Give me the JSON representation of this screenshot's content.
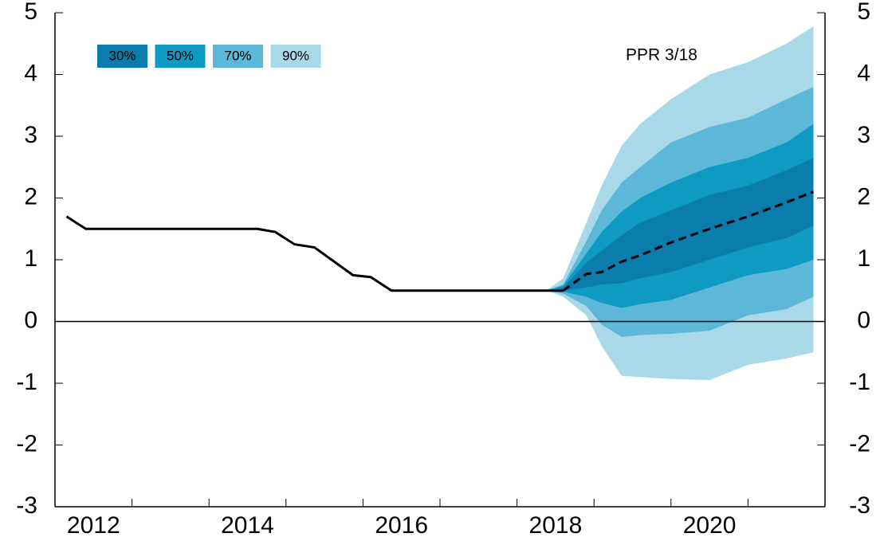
{
  "chart_data": {
    "type": "fan",
    "annotation": "PPR 3/18",
    "xlim": [
      2012,
      2022
    ],
    "xticks": [
      {
        "value": 2012.5,
        "label": "2012"
      },
      {
        "value": 2014.5,
        "label": "2014"
      },
      {
        "value": 2016.5,
        "label": "2016"
      },
      {
        "value": 2018.5,
        "label": "2018"
      },
      {
        "value": 2020.5,
        "label": "2020"
      }
    ],
    "xtick_marks": [
      2013,
      2014,
      2015,
      2016,
      2017,
      2018,
      2019,
      2020,
      2021
    ],
    "ylim": [
      -3,
      5
    ],
    "yticks": [
      -3,
      -2,
      -1,
      0,
      1,
      2,
      3,
      4,
      5
    ],
    "right_axis": true,
    "zero_line": 0,
    "bands": [
      {
        "name": "90%",
        "color": "#a9d9e9",
        "x": [
          2018.38,
          2018.6,
          2018.9,
          2019.1,
          2019.36,
          2019.6,
          2020.0,
          2020.5,
          2021.0,
          2021.5,
          2021.85
        ],
        "upper": [
          0.5,
          0.7,
          1.6,
          2.2,
          2.85,
          3.2,
          3.6,
          4.0,
          4.2,
          4.5,
          4.78
        ],
        "lower": [
          0.5,
          0.4,
          0.1,
          -0.4,
          -0.88,
          -0.9,
          -0.93,
          -0.95,
          -0.7,
          -0.6,
          -0.5
        ]
      },
      {
        "name": "70%",
        "color": "#5cb8d6",
        "x": [
          2018.38,
          2018.6,
          2018.9,
          2019.1,
          2019.36,
          2019.6,
          2020.0,
          2020.5,
          2021.0,
          2021.5,
          2021.85
        ],
        "upper": [
          0.5,
          0.6,
          1.3,
          1.8,
          2.25,
          2.5,
          2.9,
          3.15,
          3.3,
          3.6,
          3.8
        ],
        "lower": [
          0.5,
          0.45,
          0.25,
          -0.05,
          -0.25,
          -0.22,
          -0.2,
          -0.15,
          0.1,
          0.2,
          0.4
        ]
      },
      {
        "name": "50%",
        "color": "#0e9ac3",
        "x": [
          2018.38,
          2018.6,
          2018.9,
          2019.1,
          2019.36,
          2019.6,
          2020.0,
          2020.5,
          2021.0,
          2021.5,
          2021.85
        ],
        "upper": [
          0.5,
          0.58,
          1.1,
          1.45,
          1.78,
          2.0,
          2.25,
          2.5,
          2.65,
          2.9,
          3.2
        ],
        "lower": [
          0.5,
          0.48,
          0.4,
          0.3,
          0.22,
          0.28,
          0.35,
          0.55,
          0.75,
          0.85,
          1.0
        ]
      },
      {
        "name": "30%",
        "color": "#0a7dad",
        "x": [
          2018.38,
          2018.6,
          2018.9,
          2019.1,
          2019.36,
          2019.6,
          2020.0,
          2020.5,
          2021.0,
          2021.5,
          2021.85
        ],
        "upper": [
          0.5,
          0.55,
          0.95,
          1.15,
          1.4,
          1.6,
          1.8,
          2.05,
          2.2,
          2.45,
          2.65
        ],
        "lower": [
          0.5,
          0.5,
          0.55,
          0.6,
          0.62,
          0.7,
          0.8,
          1.0,
          1.2,
          1.35,
          1.55
        ]
      }
    ],
    "legend_order": [
      3,
      2,
      1,
      0
    ],
    "lines": [
      {
        "style": "solid",
        "color": "#000000",
        "x": [
          2012.15,
          2012.4,
          2014.63,
          2014.86,
          2015.11,
          2015.37,
          2015.87,
          2016.1,
          2016.37,
          2018.38,
          2018.6
        ],
        "values": [
          1.7,
          1.5,
          1.5,
          1.45,
          1.25,
          1.2,
          0.75,
          0.72,
          0.5,
          0.5,
          0.5
        ]
      },
      {
        "style": "dashed",
        "color": "#000000",
        "x": [
          2018.6,
          2018.9,
          2019.1,
          2019.36,
          2019.6,
          2020.0,
          2020.5,
          2021.0,
          2021.5,
          2021.85
        ],
        "values": [
          0.5,
          0.77,
          0.8,
          0.97,
          1.07,
          1.28,
          1.5,
          1.7,
          1.93,
          2.1
        ]
      }
    ]
  }
}
